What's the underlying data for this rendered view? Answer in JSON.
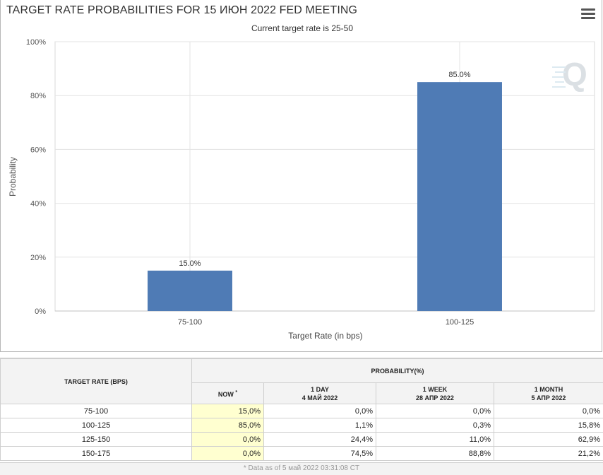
{
  "chart": {
    "title": "TARGET RATE PROBABILITIES FOR 15 ИЮН 2022 FED MEETING",
    "subtitle": "Current target rate is 25-50"
  },
  "chart_data": {
    "type": "bar",
    "categories": [
      "75-100",
      "100-125"
    ],
    "values": [
      15.0,
      85.0
    ],
    "value_labels": [
      "15.0%",
      "85.0%"
    ],
    "xlabel": "Target Rate (in bps)",
    "ylabel": "Probability",
    "ylim": [
      0,
      100
    ],
    "y_ticks": [
      "0%",
      "20%",
      "40%",
      "60%",
      "80%",
      "100%"
    ],
    "grid": true,
    "bar_color": "#4f7bb5"
  },
  "table": {
    "rate_header": "TARGET RATE (BPS)",
    "prob_header": "PROBABILITY(%)",
    "now_header": "NOW",
    "now_mark": "*",
    "col_day": {
      "line1": "1 DAY",
      "line2": "4 МАЙ 2022"
    },
    "col_week": {
      "line1": "1 WEEK",
      "line2": "28 АПР 2022"
    },
    "col_month": {
      "line1": "1 MONTH",
      "line2": "5 АПР 2022"
    },
    "rows": [
      {
        "rate": "75-100",
        "now": "15,0%",
        "day": "0,0%",
        "week": "0,0%",
        "month": "0,0%"
      },
      {
        "rate": "100-125",
        "now": "85,0%",
        "day": "1,1%",
        "week": "0,3%",
        "month": "15,8%"
      },
      {
        "rate": "125-150",
        "now": "0,0%",
        "day": "24,4%",
        "week": "11,0%",
        "month": "62,9%"
      },
      {
        "rate": "150-175",
        "now": "0,0%",
        "day": "74,5%",
        "week": "88,8%",
        "month": "21,2%"
      }
    ]
  },
  "footnote": "* Data as of 5 май 2022 03:31:08 CT",
  "icons": {
    "menu": "hamburger-menu-icon",
    "watermark": "q-logo-watermark"
  },
  "colors": {
    "bar": "#4f7bb5",
    "now_cell": "#ffffd0",
    "header_bg": "#f3f3f3"
  }
}
